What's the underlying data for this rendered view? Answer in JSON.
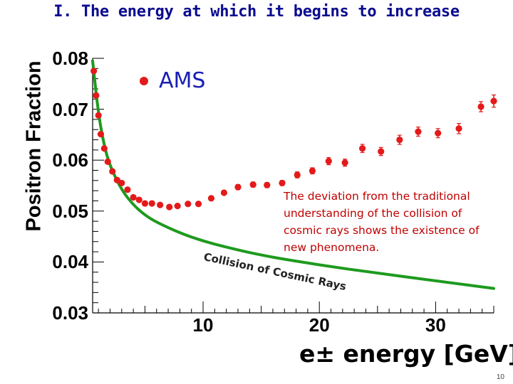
{
  "slide": {
    "title": "I. The energy at which it begins to increase",
    "page_number": "10"
  },
  "colors": {
    "title": "#0b0b8f",
    "data_points": "#e41a1a",
    "model_curve": "#1e9a1e",
    "annotation": "#c00000",
    "legend_text": "#1a1fb3"
  },
  "chart_data": {
    "type": "scatter",
    "title": "",
    "xlabel": "e± energy [GeV]",
    "ylabel": "Positron Fraction",
    "xlim": [
      0.5,
      35
    ],
    "ylim": [
      0.03,
      0.08
    ],
    "x_ticks": [
      10,
      20,
      30
    ],
    "y_ticks": [
      0.03,
      0.04,
      0.05,
      0.06,
      0.07,
      0.08
    ],
    "y_tick_labels": [
      "0.03",
      "0.04",
      "0.05",
      "0.06",
      "0.07",
      "0.08"
    ],
    "x_tick_labels": [
      "10",
      "20",
      "30"
    ],
    "legend": {
      "label": "AMS",
      "position": "top-left"
    },
    "series": [
      {
        "name": "AMS",
        "style": "points-with-error-bars",
        "points": [
          {
            "x": 0.6,
            "y": 0.0775,
            "err": 0.0003
          },
          {
            "x": 0.8,
            "y": 0.0727,
            "err": 0.0003
          },
          {
            "x": 1.0,
            "y": 0.0688,
            "err": 0.0003
          },
          {
            "x": 1.2,
            "y": 0.0651,
            "err": 0.0003
          },
          {
            "x": 1.5,
            "y": 0.0623,
            "err": 0.0003
          },
          {
            "x": 1.8,
            "y": 0.0597,
            "err": 0.0003
          },
          {
            "x": 2.2,
            "y": 0.0578,
            "err": 0.0003
          },
          {
            "x": 2.6,
            "y": 0.0561,
            "err": 0.0003
          },
          {
            "x": 3.0,
            "y": 0.0555,
            "err": 0.0003
          },
          {
            "x": 3.5,
            "y": 0.0542,
            "err": 0.0003
          },
          {
            "x": 4.0,
            "y": 0.0527,
            "err": 0.0003
          },
          {
            "x": 4.5,
            "y": 0.0522,
            "err": 0.0003
          },
          {
            "x": 5.0,
            "y": 0.0515,
            "err": 0.0003
          },
          {
            "x": 5.6,
            "y": 0.0515,
            "err": 0.0003
          },
          {
            "x": 6.3,
            "y": 0.0512,
            "err": 0.0003
          },
          {
            "x": 7.1,
            "y": 0.0508,
            "err": 0.0003
          },
          {
            "x": 7.8,
            "y": 0.051,
            "err": 0.0003
          },
          {
            "x": 8.7,
            "y": 0.0514,
            "err": 0.0004
          },
          {
            "x": 9.6,
            "y": 0.0514,
            "err": 0.0004
          },
          {
            "x": 10.7,
            "y": 0.0525,
            "err": 0.0004
          },
          {
            "x": 11.8,
            "y": 0.0536,
            "err": 0.0004
          },
          {
            "x": 13.0,
            "y": 0.0547,
            "err": 0.0005
          },
          {
            "x": 14.3,
            "y": 0.0552,
            "err": 0.0005
          },
          {
            "x": 15.5,
            "y": 0.0551,
            "err": 0.0005
          },
          {
            "x": 16.8,
            "y": 0.0555,
            "err": 0.0005
          },
          {
            "x": 18.1,
            "y": 0.0571,
            "err": 0.0006
          },
          {
            "x": 19.4,
            "y": 0.0579,
            "err": 0.0006
          },
          {
            "x": 20.8,
            "y": 0.0598,
            "err": 0.0007
          },
          {
            "x": 22.2,
            "y": 0.0595,
            "err": 0.0007
          },
          {
            "x": 23.7,
            "y": 0.0623,
            "err": 0.0008
          },
          {
            "x": 25.3,
            "y": 0.0617,
            "err": 0.0008
          },
          {
            "x": 26.9,
            "y": 0.064,
            "err": 0.0009
          },
          {
            "x": 28.5,
            "y": 0.0656,
            "err": 0.0009
          },
          {
            "x": 30.2,
            "y": 0.0653,
            "err": 0.0009
          },
          {
            "x": 32.0,
            "y": 0.0662,
            "err": 0.001
          },
          {
            "x": 33.9,
            "y": 0.0705,
            "err": 0.001
          },
          {
            "x": 35.0,
            "y": 0.0716,
            "err": 0.0012
          }
        ]
      },
      {
        "name": "Collision of Cosmic Rays",
        "style": "line",
        "x": [
          0.5,
          1,
          1.5,
          2,
          3,
          4,
          5,
          6,
          8,
          10,
          12,
          15,
          20,
          25,
          30,
          35
        ],
        "values": [
          0.0795,
          0.069,
          0.0628,
          0.0588,
          0.0541,
          0.0512,
          0.0492,
          0.0478,
          0.0457,
          0.0441,
          0.0429,
          0.0413,
          0.0394,
          0.0378,
          0.0363,
          0.0348
        ]
      }
    ],
    "annotations": [
      {
        "text": "The deviation from the traditional understanding of the collision of cosmic rays shows the existence of new phenomena.",
        "color": "#c00000"
      },
      {
        "text": "Collision of Cosmic Rays",
        "target": "model curve"
      }
    ]
  }
}
